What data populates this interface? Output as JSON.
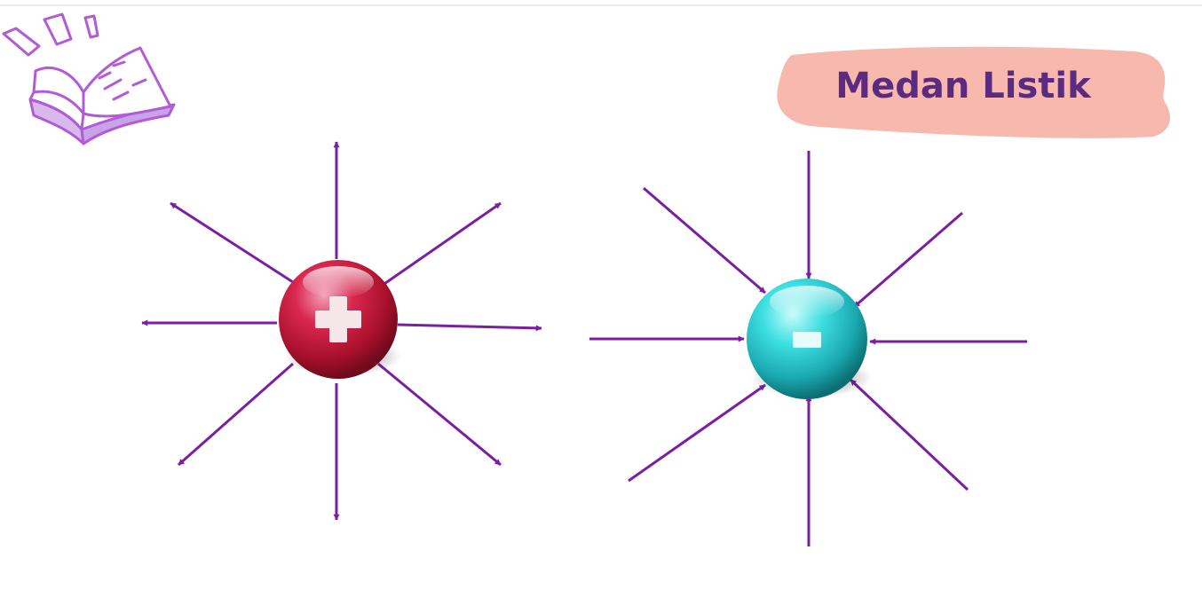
{
  "title": "Medan Listik",
  "colors": {
    "arrow": "#7b1fa2",
    "title_text": "#5c2a7e",
    "title_banner": "#f7b8ae",
    "positive_charge": "#c2183a",
    "negative_charge": "#2fd1d3",
    "book_icon": "#b15bd6",
    "top_rule": "#e3e3e3"
  },
  "charges": [
    {
      "name": "positive",
      "symbol": "+",
      "field_direction": "outward",
      "arrow_count": 8
    },
    {
      "name": "negative",
      "symbol": "-",
      "field_direction": "inward",
      "arrow_count": 8
    }
  ],
  "icons": {
    "corner": "open-book-icon"
  }
}
